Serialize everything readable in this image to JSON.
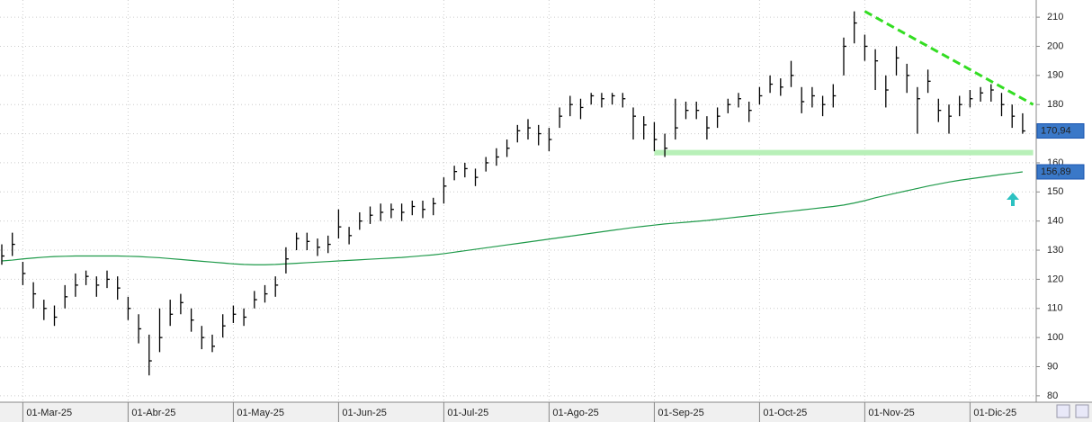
{
  "chart_data": {
    "type": "ohlc",
    "categories": [
      null,
      null,
      "01-Mar-25",
      null,
      null,
      null,
      null,
      null,
      null,
      null,
      null,
      null,
      "01-Abr-25",
      null,
      null,
      null,
      null,
      null,
      null,
      null,
      null,
      null,
      "01-May-25",
      null,
      null,
      null,
      null,
      null,
      null,
      null,
      null,
      null,
      "01-Jun-25",
      null,
      null,
      null,
      null,
      null,
      null,
      null,
      null,
      null,
      "01-Jul-25",
      null,
      null,
      null,
      null,
      null,
      null,
      null,
      null,
      null,
      "01-Ago-25",
      null,
      null,
      null,
      null,
      null,
      null,
      null,
      null,
      null,
      "01-Sep-25",
      null,
      null,
      null,
      null,
      null,
      null,
      null,
      null,
      null,
      "01-Oct-25",
      null,
      null,
      null,
      null,
      null,
      null,
      null,
      null,
      null,
      "01-Nov-25",
      null,
      null,
      null,
      null,
      null,
      null,
      null,
      null,
      null,
      "01-Dic-25",
      null,
      null,
      null,
      null,
      null
    ],
    "ohlc": {
      "color": "#000000",
      "end_label": "170,94",
      "high": [
        132,
        136,
        126,
        119,
        113,
        111,
        118,
        122,
        123,
        121,
        123,
        121,
        114,
        108,
        101,
        110,
        113,
        115,
        110,
        104,
        101,
        108,
        111,
        110,
        116,
        118,
        121,
        131,
        136,
        136,
        134,
        135,
        144,
        138,
        143,
        145,
        146,
        146,
        146,
        147,
        147,
        148,
        155,
        159,
        160,
        158,
        162,
        165,
        168,
        173,
        175,
        173,
        172,
        179,
        183,
        182,
        184,
        184,
        184,
        184,
        179,
        176,
        174,
        170,
        182,
        181,
        181,
        176,
        179,
        182,
        184,
        181,
        186,
        190,
        189,
        195,
        186,
        186,
        183,
        187,
        203,
        212,
        204,
        199,
        190,
        200,
        194,
        186,
        192,
        182,
        180,
        183,
        185,
        186,
        187,
        184,
        180,
        177
      ],
      "low": [
        125,
        128,
        118,
        110,
        106,
        104,
        110,
        114,
        118,
        114,
        117,
        113,
        106,
        98,
        87,
        95,
        104,
        108,
        102,
        96,
        95,
        100,
        105,
        104,
        110,
        112,
        114,
        122,
        130,
        130,
        128,
        129,
        134,
        132,
        137,
        139,
        140,
        141,
        140,
        142,
        141,
        142,
        146,
        154,
        155,
        152,
        157,
        159,
        162,
        167,
        168,
        166,
        164,
        172,
        176,
        175,
        180,
        179,
        180,
        179,
        168,
        168,
        164,
        162,
        168,
        175,
        175,
        168,
        172,
        177,
        179,
        174,
        180,
        184,
        183,
        186,
        177,
        179,
        176,
        179,
        190,
        201,
        195,
        185,
        179,
        190,
        184,
        170,
        184,
        174,
        170,
        176,
        179,
        181,
        181,
        176,
        172,
        170
      ],
      "close": [
        128,
        132,
        122,
        115,
        110,
        107,
        114,
        118,
        121,
        118,
        120,
        117,
        110,
        103,
        92,
        100,
        108,
        112,
        106,
        100,
        97,
        104,
        108,
        107,
        113,
        115,
        118,
        127,
        134,
        133,
        131,
        132,
        138,
        135,
        140,
        142,
        143,
        144,
        143,
        145,
        144,
        146,
        152,
        157,
        158,
        155,
        160,
        162,
        165,
        171,
        172,
        170,
        168,
        176,
        180,
        179,
        183,
        182,
        183,
        182,
        176,
        173,
        168,
        165,
        172,
        178,
        178,
        172,
        176,
        180,
        182,
        178,
        183,
        187,
        186,
        190,
        181,
        183,
        180,
        183,
        200,
        208,
        200,
        195,
        185,
        196,
        190,
        182,
        188,
        178,
        176,
        180,
        182,
        184,
        185,
        180,
        176,
        170.94
      ]
    },
    "ma": {
      "color": "#1f9a4a",
      "end_label": "156,89",
      "values": [
        126.3,
        126.6,
        127,
        127.3,
        127.6,
        127.8,
        127.9,
        128,
        128,
        128,
        128,
        128,
        127.9,
        127.8,
        127.6,
        127.4,
        127.1,
        126.8,
        126.5,
        126.2,
        125.9,
        125.6,
        125.3,
        125.1,
        125,
        125,
        125.1,
        125.3,
        125.5,
        125.7,
        125.9,
        126.1,
        126.3,
        126.5,
        126.7,
        126.9,
        127.1,
        127.3,
        127.5,
        127.8,
        128.1,
        128.4,
        128.8,
        129.3,
        129.8,
        130.3,
        130.8,
        131.3,
        131.8,
        132.3,
        132.8,
        133.3,
        133.8,
        134.3,
        134.8,
        135.3,
        135.8,
        136.3,
        136.8,
        137.3,
        137.8,
        138.2,
        138.6,
        139,
        139.3,
        139.6,
        139.9,
        140.2,
        140.6,
        141,
        141.4,
        141.8,
        142.2,
        142.6,
        143,
        143.4,
        143.8,
        144.2,
        144.6,
        145,
        145.5,
        146.2,
        147,
        148,
        148.8,
        149.6,
        150.4,
        151.2,
        152,
        152.7,
        153.4,
        154,
        154.5,
        155,
        155.5,
        156,
        156.4,
        156.89
      ]
    },
    "trend_line": {
      "color": "#33dd22",
      "x": [
        82,
        98
      ],
      "y": [
        212,
        180
      ]
    },
    "support_line": {
      "color": "#b8f0b8",
      "x": [
        62,
        98
      ],
      "y": 163.5
    },
    "ylim": [
      77.8,
      215.9
    ],
    "yticks": [
      80,
      90,
      100,
      110,
      120,
      130,
      140,
      150,
      160,
      170,
      180,
      190,
      200,
      210
    ],
    "grid": true
  }
}
